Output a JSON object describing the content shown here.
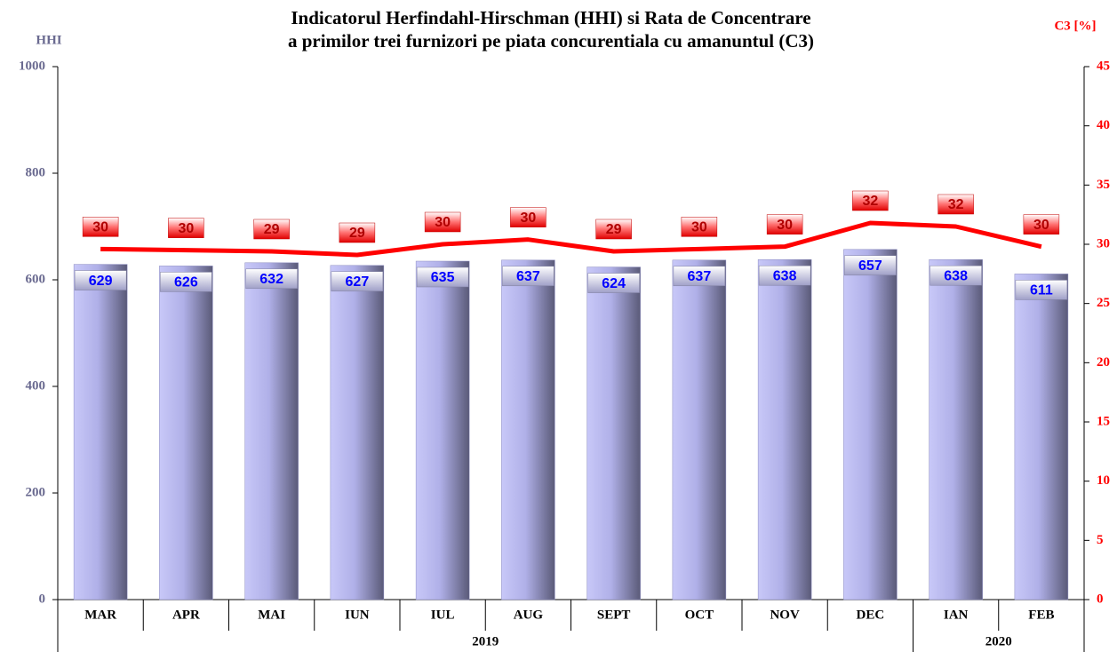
{
  "chart_data": {
    "type": "bar",
    "title": [
      "Indicatorul Herfindahl-Hirschman (HHI) si Rata de Concentrare",
      "a primilor trei furnizori pe piata concurentiala cu amanuntul (C3)"
    ],
    "y_label": "HHI",
    "y2_label": "C3 [%]",
    "categories": [
      "MAR",
      "APR",
      "MAI",
      "IUN",
      "IUL",
      "AUG",
      "SEPT",
      "OCT",
      "NOV",
      "DEC",
      "IAN",
      "FEB"
    ],
    "groups": [
      {
        "name": "2019",
        "count": 10
      },
      {
        "name": "2020",
        "count": 2
      }
    ],
    "series": [
      {
        "type": "bar",
        "color": "#8a8ac0",
        "values": [
          629,
          626,
          632,
          627,
          635,
          637,
          624,
          637,
          638,
          657,
          638,
          611
        ]
      },
      {
        "type": "line",
        "axis": "y2",
        "color": "#ff0000",
        "values": [
          29.6,
          29.5,
          29.4,
          29.1,
          30.0,
          30.4,
          29.4,
          29.6,
          29.8,
          31.8,
          31.5,
          29.8
        ],
        "value_labels": [
          "30",
          "30",
          "29",
          "29",
          "30",
          "30",
          "29",
          "30",
          "30",
          "32",
          "32",
          "30"
        ]
      }
    ],
    "ylim": [
      0,
      1000
    ],
    "yticks": [
      0,
      200,
      400,
      600,
      800,
      1000
    ],
    "y2lim": [
      0,
      45
    ],
    "y2ticks": [
      0,
      5,
      10,
      15,
      20,
      25,
      30,
      35,
      40,
      45
    ]
  }
}
